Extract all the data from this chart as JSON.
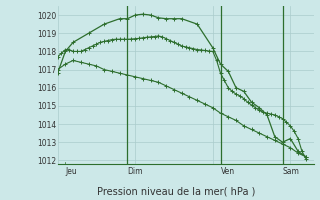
{
  "background_color": "#cce8e8",
  "grid_color": "#aacccc",
  "line_color": "#2d6e2d",
  "title": "Pression niveau de la mer( hPa )",
  "ylabel_ticks": [
    1012,
    1013,
    1014,
    1015,
    1016,
    1017,
    1018,
    1019,
    1020
  ],
  "ylim": [
    1011.8,
    1020.5
  ],
  "xlim": [
    0,
    33
  ],
  "day_labels": [
    "Jeu",
    "Dim",
    "Ven",
    "Sam"
  ],
  "day_positions": [
    1,
    9,
    21,
    29
  ],
  "vline_positions": [
    9,
    21,
    29
  ],
  "series": [
    {
      "x": [
        0,
        0.5,
        1,
        1.5,
        2,
        2.5,
        3,
        3.5,
        4,
        4.5,
        5,
        5.5,
        6,
        6.5,
        7,
        7.5,
        8,
        8.5,
        9,
        9.5,
        10,
        10.5,
        11,
        11.5,
        12,
        12.5,
        13,
        13.5,
        14,
        14.5,
        15,
        15.5,
        16,
        16.5,
        17,
        17.5,
        18,
        18.5,
        19,
        19.5,
        20,
        20.5,
        21,
        21.5,
        22,
        22.5,
        23,
        23.5,
        24,
        24.5,
        25,
        25.5,
        26,
        26.5,
        27,
        27.5,
        28,
        28.5,
        29,
        29.5,
        30,
        30.5,
        31,
        31.5,
        32
      ],
      "y": [
        1017.7,
        1017.9,
        1018.1,
        1018.1,
        1018.0,
        1018.0,
        1018.0,
        1018.1,
        1018.2,
        1018.3,
        1018.4,
        1018.5,
        1018.55,
        1018.6,
        1018.65,
        1018.67,
        1018.67,
        1018.67,
        1018.67,
        1018.68,
        1018.7,
        1018.72,
        1018.75,
        1018.78,
        1018.8,
        1018.82,
        1018.85,
        1018.8,
        1018.7,
        1018.6,
        1018.5,
        1018.4,
        1018.3,
        1018.25,
        1018.2,
        1018.15,
        1018.1,
        1018.08,
        1018.05,
        1018.02,
        1018.0,
        1017.5,
        1016.8,
        1016.4,
        1016.0,
        1015.8,
        1015.65,
        1015.55,
        1015.4,
        1015.2,
        1015.05,
        1014.9,
        1014.75,
        1014.65,
        1014.6,
        1014.55,
        1014.5,
        1014.4,
        1014.3,
        1014.1,
        1013.9,
        1013.6,
        1013.2,
        1012.5,
        1012.1
      ],
      "marker": "+",
      "markersize": 2.5,
      "linewidth": 0.8
    },
    {
      "x": [
        0,
        1,
        2,
        4,
        6,
        8,
        9,
        10,
        11,
        12,
        13,
        14,
        15,
        16,
        18,
        20,
        21,
        22,
        23,
        24,
        25,
        26,
        27,
        28,
        29,
        30,
        31,
        32
      ],
      "y": [
        1016.8,
        1018.0,
        1018.5,
        1019.0,
        1019.5,
        1019.8,
        1019.8,
        1020.0,
        1020.05,
        1020.0,
        1019.85,
        1019.8,
        1019.8,
        1019.8,
        1019.5,
        1018.2,
        1017.3,
        1016.9,
        1016.0,
        1015.8,
        1015.2,
        1014.9,
        1014.5,
        1013.3,
        1013.0,
        1013.2,
        1012.5,
        1012.2
      ],
      "marker": "+",
      "markersize": 3.5,
      "linewidth": 0.9
    },
    {
      "x": [
        0,
        1,
        2,
        3,
        4,
        5,
        6,
        7,
        8,
        9,
        10,
        11,
        12,
        13,
        14,
        15,
        16,
        17,
        18,
        19,
        20,
        21,
        22,
        23,
        24,
        25,
        26,
        27,
        28,
        29,
        30,
        31,
        32
      ],
      "y": [
        1017.0,
        1017.3,
        1017.5,
        1017.4,
        1017.3,
        1017.2,
        1017.0,
        1016.9,
        1016.8,
        1016.7,
        1016.6,
        1016.5,
        1016.4,
        1016.3,
        1016.1,
        1015.9,
        1015.7,
        1015.5,
        1015.3,
        1015.1,
        1014.9,
        1014.6,
        1014.4,
        1014.2,
        1013.9,
        1013.7,
        1013.5,
        1013.3,
        1013.1,
        1012.9,
        1012.7,
        1012.4,
        1012.2
      ],
      "marker": "+",
      "markersize": 2.5,
      "linewidth": 0.8
    }
  ]
}
